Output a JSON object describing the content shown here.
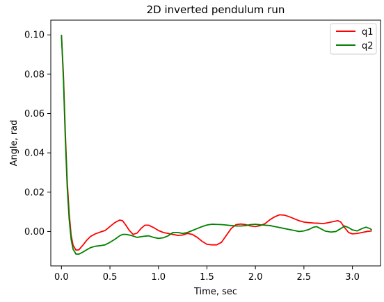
{
  "chart_data": {
    "type": "line",
    "title": "2D inverted pendulum run",
    "xlabel": "Time, sec",
    "ylabel": "Angle, rad",
    "xlim": [
      -0.11,
      3.29
    ],
    "ylim": [
      -0.0175,
      0.1075
    ],
    "xticks": [
      0.0,
      0.5,
      1.0,
      1.5,
      2.0,
      2.5,
      3.0
    ],
    "xtick_labels": [
      "0.0",
      "0.5",
      "1.0",
      "1.5",
      "2.0",
      "2.5",
      "3.0"
    ],
    "yticks": [
      0.0,
      0.02,
      0.04,
      0.06,
      0.08,
      0.1
    ],
    "ytick_labels": [
      "0.00",
      "0.02",
      "0.04",
      "0.06",
      "0.08",
      "0.10"
    ],
    "grid": false,
    "legend": "top-right",
    "series": [
      {
        "name": "q1",
        "color": "#ff0000",
        "points": [
          [
            0.0,
            0.1
          ],
          [
            0.02,
            0.08
          ],
          [
            0.04,
            0.05
          ],
          [
            0.06,
            0.025
          ],
          [
            0.08,
            0.009
          ],
          [
            0.1,
            -0.002
          ],
          [
            0.12,
            -0.007
          ],
          [
            0.15,
            -0.0095
          ],
          [
            0.18,
            -0.0093
          ],
          [
            0.22,
            -0.007
          ],
          [
            0.26,
            -0.0045
          ],
          [
            0.3,
            -0.0025
          ],
          [
            0.35,
            -0.0012
          ],
          [
            0.4,
            -0.0003
          ],
          [
            0.45,
            0.0005
          ],
          [
            0.5,
            0.0025
          ],
          [
            0.55,
            0.0045
          ],
          [
            0.6,
            0.0058
          ],
          [
            0.63,
            0.0055
          ],
          [
            0.66,
            0.0035
          ],
          [
            0.7,
            0.0005
          ],
          [
            0.74,
            -0.0015
          ],
          [
            0.78,
            -0.0008
          ],
          [
            0.82,
            0.0015
          ],
          [
            0.86,
            0.0032
          ],
          [
            0.9,
            0.0032
          ],
          [
            0.95,
            0.002
          ],
          [
            1.0,
            0.0005
          ],
          [
            1.05,
            -0.0005
          ],
          [
            1.1,
            -0.001
          ],
          [
            1.15,
            -0.0015
          ],
          [
            1.2,
            -0.002
          ],
          [
            1.25,
            -0.0018
          ],
          [
            1.3,
            -0.001
          ],
          [
            1.35,
            -0.0015
          ],
          [
            1.4,
            -0.003
          ],
          [
            1.45,
            -0.005
          ],
          [
            1.5,
            -0.0065
          ],
          [
            1.55,
            -0.0068
          ],
          [
            1.6,
            -0.0068
          ],
          [
            1.65,
            -0.0055
          ],
          [
            1.7,
            -0.002
          ],
          [
            1.75,
            0.0015
          ],
          [
            1.8,
            0.0035
          ],
          [
            1.85,
            0.0038
          ],
          [
            1.9,
            0.0035
          ],
          [
            1.95,
            0.0028
          ],
          [
            2.0,
            0.0025
          ],
          [
            2.05,
            0.003
          ],
          [
            2.1,
            0.004
          ],
          [
            2.15,
            0.006
          ],
          [
            2.2,
            0.0075
          ],
          [
            2.25,
            0.0085
          ],
          [
            2.3,
            0.0083
          ],
          [
            2.35,
            0.0075
          ],
          [
            2.4,
            0.0065
          ],
          [
            2.45,
            0.0055
          ],
          [
            2.5,
            0.0048
          ],
          [
            2.55,
            0.0045
          ],
          [
            2.6,
            0.0043
          ],
          [
            2.65,
            0.0042
          ],
          [
            2.7,
            0.004
          ],
          [
            2.75,
            0.0045
          ],
          [
            2.8,
            0.005
          ],
          [
            2.85,
            0.0055
          ],
          [
            2.88,
            0.0048
          ],
          [
            2.92,
            0.002
          ],
          [
            2.96,
            -0.0005
          ],
          [
            3.0,
            -0.0012
          ],
          [
            3.05,
            -0.001
          ],
          [
            3.1,
            -0.0005
          ],
          [
            3.15,
            0.0
          ],
          [
            3.2,
            0.0003
          ]
        ]
      },
      {
        "name": "q2",
        "color": "#008000",
        "points": [
          [
            0.0,
            0.1
          ],
          [
            0.02,
            0.078
          ],
          [
            0.04,
            0.047
          ],
          [
            0.06,
            0.022
          ],
          [
            0.08,
            0.006
          ],
          [
            0.1,
            -0.004
          ],
          [
            0.12,
            -0.009
          ],
          [
            0.15,
            -0.0115
          ],
          [
            0.18,
            -0.0115
          ],
          [
            0.22,
            -0.0105
          ],
          [
            0.26,
            -0.0093
          ],
          [
            0.3,
            -0.0082
          ],
          [
            0.35,
            -0.0075
          ],
          [
            0.4,
            -0.0072
          ],
          [
            0.45,
            -0.0068
          ],
          [
            0.5,
            -0.0055
          ],
          [
            0.55,
            -0.004
          ],
          [
            0.6,
            -0.0022
          ],
          [
            0.63,
            -0.0015
          ],
          [
            0.67,
            -0.0015
          ],
          [
            0.72,
            -0.002
          ],
          [
            0.78,
            -0.003
          ],
          [
            0.84,
            -0.0025
          ],
          [
            0.9,
            -0.0022
          ],
          [
            0.95,
            -0.003
          ],
          [
            1.0,
            -0.0035
          ],
          [
            1.05,
            -0.0032
          ],
          [
            1.1,
            -0.0022
          ],
          [
            1.15,
            -0.0005
          ],
          [
            1.2,
            -0.0005
          ],
          [
            1.25,
            -0.001
          ],
          [
            1.3,
            -0.0005
          ],
          [
            1.35,
            0.0005
          ],
          [
            1.4,
            0.0015
          ],
          [
            1.45,
            0.0025
          ],
          [
            1.5,
            0.0033
          ],
          [
            1.55,
            0.0037
          ],
          [
            1.6,
            0.0036
          ],
          [
            1.65,
            0.0035
          ],
          [
            1.7,
            0.0033
          ],
          [
            1.75,
            0.003
          ],
          [
            1.8,
            0.0028
          ],
          [
            1.85,
            0.0028
          ],
          [
            1.9,
            0.003
          ],
          [
            1.95,
            0.0035
          ],
          [
            2.0,
            0.0037
          ],
          [
            2.05,
            0.0034
          ],
          [
            2.1,
            0.0032
          ],
          [
            2.15,
            0.003
          ],
          [
            2.2,
            0.0025
          ],
          [
            2.25,
            0.002
          ],
          [
            2.3,
            0.0015
          ],
          [
            2.35,
            0.001
          ],
          [
            2.4,
            0.0005
          ],
          [
            2.45,
            0.0
          ],
          [
            2.5,
            0.0003
          ],
          [
            2.55,
            0.001
          ],
          [
            2.6,
            0.0022
          ],
          [
            2.63,
            0.0025
          ],
          [
            2.67,
            0.0015
          ],
          [
            2.72,
            0.0002
          ],
          [
            2.78,
            -0.0003
          ],
          [
            2.83,
            0.0
          ],
          [
            2.88,
            0.0015
          ],
          [
            2.92,
            0.0028
          ],
          [
            2.96,
            0.002
          ],
          [
            3.0,
            0.0008
          ],
          [
            3.05,
            0.0003
          ],
          [
            3.1,
            0.0015
          ],
          [
            3.14,
            0.0022
          ],
          [
            3.18,
            0.0015
          ],
          [
            3.2,
            0.0008
          ]
        ]
      }
    ]
  }
}
